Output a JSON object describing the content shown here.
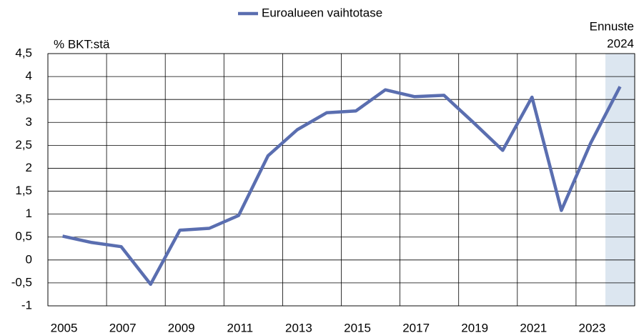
{
  "chart_data": {
    "type": "line",
    "legend_position": "top",
    "y_label": "% BKT:stä",
    "annotations": [
      "Ennuste",
      "2024"
    ],
    "shade": {
      "index": 19,
      "color": "#dce6f0"
    },
    "categories": [
      "2005",
      null,
      "2007",
      null,
      "2009",
      null,
      "2011",
      null,
      "2013",
      null,
      "2015",
      null,
      "2017",
      null,
      "2019",
      null,
      "2021",
      null,
      "2023",
      null
    ],
    "series": [
      {
        "name": "Euroalueen vaihtotase",
        "color": "#5a6eb0",
        "values": [
          0.52,
          0.38,
          0.29,
          -0.53,
          0.65,
          0.69,
          0.97,
          2.27,
          2.84,
          3.21,
          3.25,
          3.71,
          3.56,
          3.59,
          3.0,
          2.39,
          3.55,
          1.08,
          2.55,
          3.78
        ]
      }
    ],
    "ylim": [
      -1,
      4.5
    ],
    "yticks": [
      -1,
      {
        "value": -0.5,
        "label": "-0,5"
      },
      0,
      {
        "value": 0.5,
        "label": "0,5"
      },
      1,
      {
        "value": 1.5,
        "label": "1,5"
      },
      2,
      {
        "value": 2.5,
        "label": "2,5"
      },
      3,
      {
        "value": 3.5,
        "label": "3,5"
      },
      4,
      {
        "value": 4.5,
        "label": "4,5"
      }
    ],
    "grid": true
  }
}
